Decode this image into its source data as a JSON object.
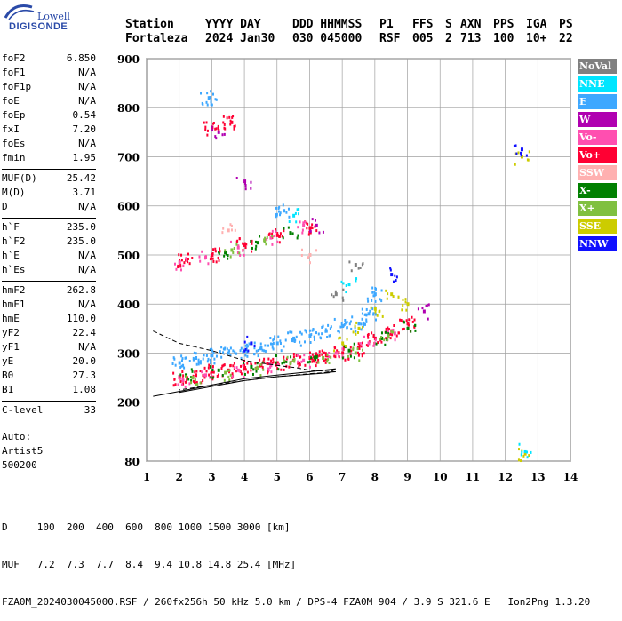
{
  "logo": {
    "brand": "Lowell",
    "product": "DIGISONDE"
  },
  "header": {
    "row1": [
      "Station",
      "YYYY DAY",
      "DDD HHMMSS",
      "P1",
      "FFS",
      "S",
      "AXN",
      "PPS",
      "IGA",
      "PS"
    ],
    "row2": [
      "Fortaleza",
      "2024 Jan30",
      "030 045000",
      "RSF",
      "005",
      "2",
      "713",
      "100",
      "10+",
      "22"
    ]
  },
  "params": {
    "group1": [
      {
        "name": "foF2",
        "value": "6.850"
      },
      {
        "name": "foF1",
        "value": "N/A"
      },
      {
        "name": "foF1p",
        "value": "N/A"
      },
      {
        "name": "foE",
        "value": "N/A"
      },
      {
        "name": "foEp",
        "value": "0.54"
      },
      {
        "name": "fxI",
        "value": "7.20"
      },
      {
        "name": "foEs",
        "value": "N/A"
      },
      {
        "name": "fmin",
        "value": "1.95"
      }
    ],
    "group2": [
      {
        "name": "MUF(D)",
        "value": "25.42"
      },
      {
        "name": "M(D)",
        "value": "3.71"
      },
      {
        "name": "D",
        "value": "N/A"
      }
    ],
    "group3": [
      {
        "name": "h`F",
        "value": "235.0"
      },
      {
        "name": "h`F2",
        "value": "235.0"
      },
      {
        "name": "h`E",
        "value": "N/A"
      },
      {
        "name": "h`Es",
        "value": "N/A"
      }
    ],
    "group4": [
      {
        "name": "hmF2",
        "value": "262.8"
      },
      {
        "name": "hmF1",
        "value": "N/A"
      },
      {
        "name": "hmE",
        "value": "110.0"
      },
      {
        "name": "yF2",
        "value": "22.4"
      },
      {
        "name": "yF1",
        "value": "N/A"
      },
      {
        "name": "yE",
        "value": "20.0"
      },
      {
        "name": "B0",
        "value": "27.3"
      },
      {
        "name": "B1",
        "value": "1.08"
      }
    ],
    "group5": [
      {
        "name": "C-level",
        "value": "33"
      }
    ]
  },
  "auto": {
    "line1": "Auto:",
    "line2": "Artist5",
    "line3": "500200"
  },
  "bottom": {
    "line1": "D     100  200  400  600  800 1000 1500 3000 [km]",
    "line2": "MUF   7.2  7.3  7.7  8.4  9.4 10.8 14.8 25.4 [MHz]",
    "line3": "FZA0M_2024030045000.RSF / 260fx256h 50 kHz 5.0 km / DPS-4 FZA0M 904 / 3.9 S 321.6 E   Ion2Png 1.3.20"
  },
  "legend": [
    {
      "label": "NoVal",
      "color": "#808080"
    },
    {
      "label": "NNE",
      "color": "#00e5ff"
    },
    {
      "label": "E",
      "color": "#3ea8ff"
    },
    {
      "label": "W",
      "color": "#b000b0"
    },
    {
      "label": "Vo-",
      "color": "#ff4fb0"
    },
    {
      "label": "Vo+",
      "color": "#ff0033"
    },
    {
      "label": "SSW",
      "color": "#ffb0b0"
    },
    {
      "label": "X-",
      "color": "#008000"
    },
    {
      "label": "X+",
      "color": "#80c040"
    },
    {
      "label": "SSE",
      "color": "#cccc00"
    },
    {
      "label": "NNW",
      "color": "#1010ff"
    }
  ],
  "chart_data": {
    "type": "scatter",
    "title": "",
    "xlabel": "",
    "ylabel": "",
    "xlim": [
      1,
      14
    ],
    "ylim": [
      80,
      900
    ],
    "x_ticks": [
      1,
      2,
      3,
      4,
      5,
      6,
      7,
      8,
      9,
      10,
      11,
      12,
      13,
      14
    ],
    "y_ticks": [
      80,
      200,
      300,
      400,
      500,
      600,
      700,
      800,
      900
    ],
    "grid": true,
    "series": [
      {
        "name": "E",
        "color": "#3ea8ff",
        "points": [
          [
            2.0,
            280
          ],
          [
            2.5,
            290
          ],
          [
            3.0,
            295
          ],
          [
            3.5,
            300
          ],
          [
            4.0,
            305
          ],
          [
            4.5,
            310
          ],
          [
            5.0,
            320
          ],
          [
            5.5,
            330
          ],
          [
            6.0,
            335
          ],
          [
            6.5,
            345
          ],
          [
            7.0,
            355
          ],
          [
            7.5,
            360
          ],
          [
            2.9,
            820
          ],
          [
            5.2,
            590
          ],
          [
            8.0,
            420
          ],
          [
            7.8,
            380
          ]
        ]
      },
      {
        "name": "Vo+",
        "color": "#ff0033",
        "points": [
          [
            2.0,
            250
          ],
          [
            2.5,
            255
          ],
          [
            3.0,
            262
          ],
          [
            3.5,
            265
          ],
          [
            4.0,
            270
          ],
          [
            4.5,
            275
          ],
          [
            5.0,
            280
          ],
          [
            5.5,
            285
          ],
          [
            6.0,
            290
          ],
          [
            6.5,
            295
          ],
          [
            7.0,
            300
          ],
          [
            7.5,
            310
          ],
          [
            8.0,
            330
          ],
          [
            8.5,
            345
          ],
          [
            9.0,
            360
          ],
          [
            2.2,
            490
          ],
          [
            3.0,
            500
          ],
          [
            4.0,
            520
          ],
          [
            5.0,
            540
          ],
          [
            6.0,
            555
          ],
          [
            3.0,
            760
          ],
          [
            3.6,
            770
          ]
        ]
      },
      {
        "name": "Vo-",
        "color": "#ff4fb0",
        "points": [
          [
            2.1,
            245
          ],
          [
            2.8,
            255
          ],
          [
            3.8,
            265
          ],
          [
            4.8,
            275
          ],
          [
            5.8,
            285
          ],
          [
            6.8,
            300
          ],
          [
            7.8,
            320
          ],
          [
            8.6,
            340
          ],
          [
            2.0,
            485
          ],
          [
            2.8,
            495
          ],
          [
            3.8,
            515
          ],
          [
            4.8,
            535
          ],
          [
            5.8,
            560
          ]
        ]
      },
      {
        "name": "X-",
        "color": "#008000",
        "points": [
          [
            2.2,
            255
          ],
          [
            3.2,
            265
          ],
          [
            4.2,
            272
          ],
          [
            5.2,
            282
          ],
          [
            6.2,
            292
          ],
          [
            7.2,
            305
          ],
          [
            8.2,
            330
          ],
          [
            9.0,
            350
          ],
          [
            3.4,
            505
          ],
          [
            4.4,
            525
          ],
          [
            5.4,
            545
          ]
        ]
      },
      {
        "name": "X+",
        "color": "#80c040",
        "points": [
          [
            2.4,
            250
          ],
          [
            3.4,
            260
          ],
          [
            4.4,
            270
          ],
          [
            5.4,
            280
          ],
          [
            6.4,
            290
          ],
          [
            7.4,
            300
          ],
          [
            8.4,
            335
          ],
          [
            3.6,
            510
          ],
          [
            4.6,
            530
          ]
        ]
      },
      {
        "name": "SSE",
        "color": "#cccc00",
        "points": [
          [
            7.0,
            320
          ],
          [
            7.5,
            350
          ],
          [
            8.0,
            390
          ],
          [
            8.5,
            420
          ],
          [
            9.0,
            400
          ],
          [
            12.5,
            700
          ],
          [
            12.6,
            95
          ]
        ]
      },
      {
        "name": "W",
        "color": "#b000b0",
        "points": [
          [
            3.2,
            750
          ],
          [
            4.0,
            650
          ],
          [
            6.2,
            560
          ],
          [
            9.5,
            385
          ]
        ]
      },
      {
        "name": "NNE",
        "color": "#00e5ff",
        "points": [
          [
            12.6,
            100
          ],
          [
            5.5,
            580
          ],
          [
            7.2,
            440
          ]
        ]
      },
      {
        "name": "NNW",
        "color": "#1010ff",
        "points": [
          [
            12.5,
            715
          ],
          [
            8.5,
            460
          ],
          [
            4.2,
            320
          ]
        ]
      },
      {
        "name": "SSW",
        "color": "#ffb0b0",
        "points": [
          [
            6.0,
            500
          ],
          [
            3.5,
            550
          ]
        ]
      },
      {
        "name": "NoVal",
        "color": "#808080",
        "points": [
          [
            6.8,
            420
          ],
          [
            7.4,
            480
          ]
        ]
      }
    ],
    "profile_curves": [
      {
        "style": "dashed",
        "points": [
          [
            1.2,
            345
          ],
          [
            2.0,
            320
          ],
          [
            3.0,
            305
          ],
          [
            4.0,
            285
          ],
          [
            5.0,
            275
          ],
          [
            5.6,
            270
          ],
          [
            6.0,
            265
          ],
          [
            6.8,
            262
          ]
        ]
      },
      {
        "style": "solid",
        "points": [
          [
            1.2,
            212
          ],
          [
            2.0,
            222
          ],
          [
            3.0,
            235
          ],
          [
            4.0,
            248
          ],
          [
            5.0,
            255
          ],
          [
            6.0,
            262
          ],
          [
            6.8,
            268
          ],
          [
            6.6,
            260
          ],
          [
            6.0,
            257
          ],
          [
            5.0,
            252
          ],
          [
            4.0,
            244
          ],
          [
            3.0,
            232
          ],
          [
            2.0,
            220
          ]
        ]
      },
      {
        "style": "dashed",
        "points": [
          [
            6.8,
            262
          ],
          [
            6.0,
            258
          ],
          [
            5.0,
            252
          ],
          [
            4.0,
            244
          ],
          [
            3.0,
            235
          ],
          [
            2.0,
            225
          ]
        ]
      }
    ]
  }
}
